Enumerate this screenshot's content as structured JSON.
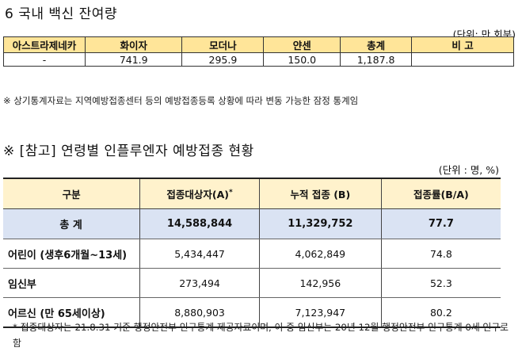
{
  "section6": {
    "title": "6  국내 백신 잔여량",
    "unit": "(단위: 만 회분)",
    "headers": [
      "아스트라제네카",
      "화이자",
      "모더나",
      "얀센",
      "총계",
      "비 고"
    ],
    "row": [
      "-",
      "741.9",
      "295.9",
      "150.0",
      "1,187.8",
      ""
    ],
    "note": "※ 상기통계자료는 지역예방접종센터 등의 예방접종등록 상황에 따라 변동 가능한 잠정 통계임"
  },
  "reference": {
    "title": "※ [참고] 연령별 인플루엔자 예방접종 현황",
    "unit": "(단위 : 명, %)",
    "headers": {
      "category": "구분",
      "target": "접종대상자(A)",
      "target_mark": "*",
      "cumulative": "누적 접종 (B)",
      "rate": "접종률(B/A)"
    },
    "rows": [
      {
        "label": "총 계",
        "target": "14,588,844",
        "cumulative": "11,329,752",
        "rate": "77.7"
      },
      {
        "label": "어린이 (생후6개월~13세)",
        "target": "5,434,447",
        "cumulative": "4,062,849",
        "rate": "74.8"
      },
      {
        "label": "임신부",
        "target": "273,494",
        "cumulative": "142,956",
        "rate": "52.3"
      },
      {
        "label": "어르신 (만 65세이상)",
        "target": "8,880,903",
        "cumulative": "7,123,947",
        "rate": "80.2"
      }
    ],
    "footnote": "* 접종대상자는 21.8.31 기준 행정안전부 인구통계 제공자료이며, 이 중 임신부는 20년 12월 행정안전부 인구통계 0세 인구로 함"
  }
}
